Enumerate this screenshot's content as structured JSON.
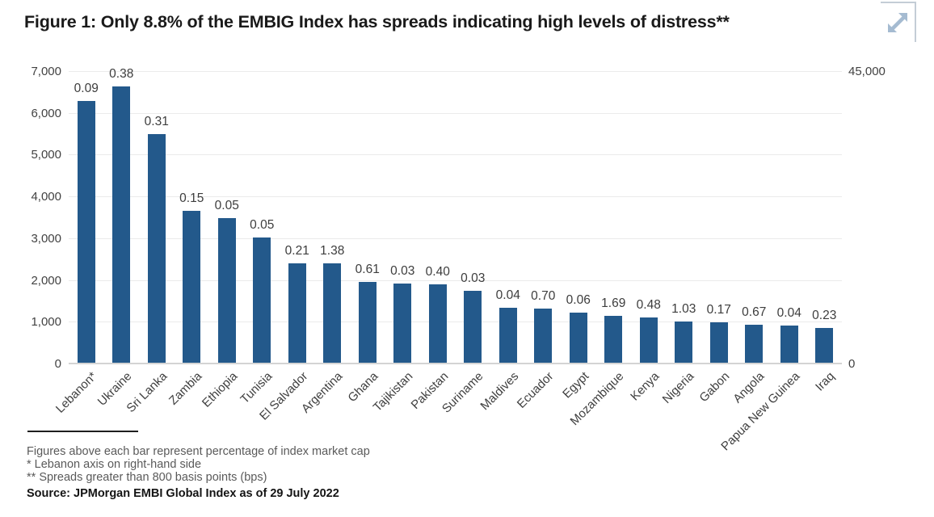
{
  "header": {
    "title": "Figure 1: Only 8.8% of the EMBIG Index has spreads indicating high levels of distress**",
    "expand_icon": "expand-diagonal-arrows-icon",
    "expand_icon_color": "#a5bbd1",
    "expand_box_border_color": "#c4cdd6"
  },
  "chart_data": {
    "type": "bar",
    "title": "Figure 1: Only 8.8% of the EMBIG Index has spreads indicating high levels of distress**",
    "bar_color": "#23598B",
    "grid": true,
    "annotation_note": "Figures above each bar represent percentage of index market cap",
    "left_axis": {
      "min": 0,
      "max": 7000,
      "ticks": [
        "7,000",
        "6,000",
        "5,000",
        "4,000",
        "3,000",
        "2,000",
        "1,000",
        "0"
      ]
    },
    "right_axis": {
      "min": 0,
      "max": 45000,
      "ticks": [
        "45,000",
        "0"
      ],
      "note": "Lebanon plotted on right-hand axis"
    },
    "categories": [
      "Lebanon*",
      "Ukraine",
      "Sri Lanka",
      "Zambia",
      "Ethiopia",
      "Tunisia",
      "El Salvador",
      "Argentina",
      "Ghana",
      "Tajikistan",
      "Pakistan",
      "Suriname",
      "Maldives",
      "Ecuador",
      "Egypt",
      "Mozambique",
      "Kenya",
      "Nigeria",
      "Gabon",
      "Angola",
      "Papua New Guinea",
      "Iraq"
    ],
    "bars": [
      {
        "country": "Lebanon*",
        "spread_bps": 40400,
        "axis": "right",
        "market_cap_pct": "0.09"
      },
      {
        "country": "Ukraine",
        "spread_bps": 6630,
        "axis": "left",
        "market_cap_pct": "0.38"
      },
      {
        "country": "Sri Lanka",
        "spread_bps": 5490,
        "axis": "left",
        "market_cap_pct": "0.31"
      },
      {
        "country": "Zambia",
        "spread_bps": 3660,
        "axis": "left",
        "market_cap_pct": "0.15"
      },
      {
        "country": "Ethiopia",
        "spread_bps": 3480,
        "axis": "left",
        "market_cap_pct": "0.05"
      },
      {
        "country": "Tunisia",
        "spread_bps": 3020,
        "axis": "left",
        "market_cap_pct": "0.05"
      },
      {
        "country": "El Salvador",
        "spread_bps": 2400,
        "axis": "left",
        "market_cap_pct": "0.21"
      },
      {
        "country": "Argentina",
        "spread_bps": 2390,
        "axis": "left",
        "market_cap_pct": "1.38"
      },
      {
        "country": "Ghana",
        "spread_bps": 1950,
        "axis": "left",
        "market_cap_pct": "0.61"
      },
      {
        "country": "Tajikistan",
        "spread_bps": 1920,
        "axis": "left",
        "market_cap_pct": "0.03"
      },
      {
        "country": "Pakistan",
        "spread_bps": 1900,
        "axis": "left",
        "market_cap_pct": "0.40"
      },
      {
        "country": "Suriname",
        "spread_bps": 1750,
        "axis": "left",
        "market_cap_pct": "0.03"
      },
      {
        "country": "Maldives",
        "spread_bps": 1330,
        "axis": "left",
        "market_cap_pct": "0.04"
      },
      {
        "country": "Ecuador",
        "spread_bps": 1320,
        "axis": "left",
        "market_cap_pct": "0.70"
      },
      {
        "country": "Egypt",
        "spread_bps": 1210,
        "axis": "left",
        "market_cap_pct": "0.06"
      },
      {
        "country": "Mozambique",
        "spread_bps": 1140,
        "axis": "left",
        "market_cap_pct": "1.69"
      },
      {
        "country": "Kenya",
        "spread_bps": 1110,
        "axis": "left",
        "market_cap_pct": "0.48"
      },
      {
        "country": "Nigeria",
        "spread_bps": 1010,
        "axis": "left",
        "market_cap_pct": "1.03"
      },
      {
        "country": "Gabon",
        "spread_bps": 990,
        "axis": "left",
        "market_cap_pct": "0.17"
      },
      {
        "country": "Angola",
        "spread_bps": 930,
        "axis": "left",
        "market_cap_pct": "0.67"
      },
      {
        "country": "Papua New Guinea",
        "spread_bps": 900,
        "axis": "left",
        "market_cap_pct": "0.04"
      },
      {
        "country": "Iraq",
        "spread_bps": 850,
        "axis": "left",
        "market_cap_pct": "0.23"
      }
    ]
  },
  "footnotes": {
    "line1": "Figures above each bar represent percentage of index market cap",
    "line2": "* Lebanon axis on right-hand side",
    "line3": "** Spreads greater than 800 basis points (bps)",
    "source": "Source: JPMorgan EMBI Global Index as of 29 July 2022"
  }
}
